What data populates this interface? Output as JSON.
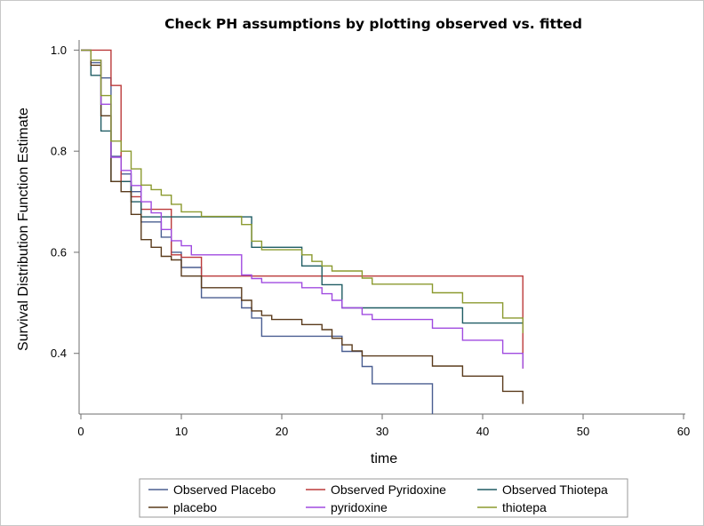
{
  "chart_data": {
    "type": "line",
    "step": true,
    "title": "Check PH assumptions by plotting observed vs. fitted",
    "xlabel": "time",
    "ylabel": "Survival Distribution Function Estimate",
    "xlim": [
      0,
      60
    ],
    "ylim": [
      0.28,
      1.02
    ],
    "x_ticks": [
      "0",
      "10",
      "20",
      "30",
      "40",
      "50",
      "60"
    ],
    "y_ticks": [
      "0.4",
      "0.6",
      "0.8",
      "1.0"
    ],
    "grid": false,
    "legend_position": "bottom",
    "series": [
      {
        "name": "Observed Placebo",
        "color": "#4a5e91",
        "points": [
          [
            0,
            1.0
          ],
          [
            1,
            0.975
          ],
          [
            2,
            0.945
          ],
          [
            3,
            0.79
          ],
          [
            4,
            0.755
          ],
          [
            5,
            0.72
          ],
          [
            6,
            0.66
          ],
          [
            8,
            0.63
          ],
          [
            9,
            0.6
          ],
          [
            10,
            0.57
          ],
          [
            12,
            0.51
          ],
          [
            16,
            0.49
          ],
          [
            17,
            0.47
          ],
          [
            18,
            0.434
          ],
          [
            26,
            0.404
          ],
          [
            28,
            0.374
          ],
          [
            29,
            0.34
          ],
          [
            35,
            0.28
          ]
        ]
      },
      {
        "name": "Observed Pyridoxine",
        "color": "#bb3a3a",
        "points": [
          [
            0,
            1.0
          ],
          [
            2,
            1.0
          ],
          [
            3,
            0.93
          ],
          [
            4,
            0.74
          ],
          [
            5,
            0.71
          ],
          [
            6,
            0.685
          ],
          [
            9,
            0.595
          ],
          [
            10,
            0.59
          ],
          [
            12,
            0.553
          ],
          [
            42,
            0.553
          ],
          [
            44,
            0.37
          ]
        ]
      },
      {
        "name": "Observed Thiotepa",
        "color": "#1f5c63",
        "points": [
          [
            0,
            1.0
          ],
          [
            1,
            0.95
          ],
          [
            2,
            0.84
          ],
          [
            3,
            0.74
          ],
          [
            5,
            0.7
          ],
          [
            6,
            0.67
          ],
          [
            17,
            0.67
          ],
          [
            17,
            0.61
          ],
          [
            22,
            0.573
          ],
          [
            24,
            0.536
          ],
          [
            26,
            0.49
          ],
          [
            38,
            0.49
          ],
          [
            38,
            0.46
          ],
          [
            44,
            0.46
          ]
        ]
      },
      {
        "name": "placebo",
        "color": "#5a3b1c",
        "points": [
          [
            0,
            1.0
          ],
          [
            1,
            0.97
          ],
          [
            2,
            0.87
          ],
          [
            3,
            0.74
          ],
          [
            4,
            0.72
          ],
          [
            5,
            0.675
          ],
          [
            6,
            0.625
          ],
          [
            7,
            0.61
          ],
          [
            8,
            0.592
          ],
          [
            9,
            0.585
          ],
          [
            10,
            0.553
          ],
          [
            12,
            0.53
          ],
          [
            16,
            0.505
          ],
          [
            17,
            0.484
          ],
          [
            18,
            0.475
          ],
          [
            19,
            0.467
          ],
          [
            22,
            0.457
          ],
          [
            24,
            0.447
          ],
          [
            25,
            0.43
          ],
          [
            26,
            0.417
          ],
          [
            27,
            0.405
          ],
          [
            28,
            0.395
          ],
          [
            35,
            0.375
          ],
          [
            38,
            0.355
          ],
          [
            42,
            0.325
          ],
          [
            44,
            0.3
          ]
        ]
      },
      {
        "name": "pyridoxine",
        "color": "#a04be0",
        "points": [
          [
            0,
            1.0
          ],
          [
            1,
            0.98
          ],
          [
            2,
            0.893
          ],
          [
            3,
            0.788
          ],
          [
            4,
            0.762
          ],
          [
            5,
            0.732
          ],
          [
            6,
            0.7
          ],
          [
            7,
            0.678
          ],
          [
            8,
            0.645
          ],
          [
            9,
            0.623
          ],
          [
            10,
            0.613
          ],
          [
            11,
            0.595
          ],
          [
            16,
            0.555
          ],
          [
            17,
            0.548
          ],
          [
            18,
            0.54
          ],
          [
            22,
            0.53
          ],
          [
            24,
            0.518
          ],
          [
            25,
            0.505
          ],
          [
            26,
            0.49
          ],
          [
            28,
            0.477
          ],
          [
            29,
            0.467
          ],
          [
            35,
            0.45
          ],
          [
            38,
            0.426
          ],
          [
            42,
            0.4
          ],
          [
            44,
            0.37
          ]
        ]
      },
      {
        "name": "thiotepa",
        "color": "#8b9a2f",
        "points": [
          [
            0,
            1.0
          ],
          [
            1,
            0.98
          ],
          [
            2,
            0.91
          ],
          [
            3,
            0.82
          ],
          [
            4,
            0.8
          ],
          [
            5,
            0.765
          ],
          [
            6,
            0.733
          ],
          [
            7,
            0.724
          ],
          [
            8,
            0.713
          ],
          [
            9,
            0.695
          ],
          [
            10,
            0.68
          ],
          [
            12,
            0.671
          ],
          [
            16,
            0.655
          ],
          [
            17,
            0.622
          ],
          [
            18,
            0.605
          ],
          [
            22,
            0.595
          ],
          [
            23,
            0.582
          ],
          [
            24,
            0.573
          ],
          [
            25,
            0.563
          ],
          [
            28,
            0.549
          ],
          [
            29,
            0.537
          ],
          [
            35,
            0.52
          ],
          [
            38,
            0.5
          ],
          [
            42,
            0.47
          ],
          [
            44,
            0.44
          ]
        ]
      }
    ]
  }
}
